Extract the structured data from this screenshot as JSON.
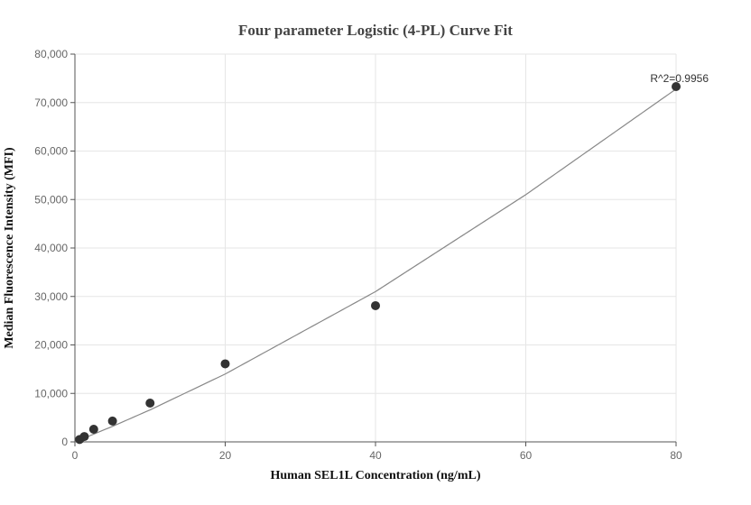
{
  "chart_data": {
    "type": "scatter",
    "title": "Four parameter Logistic (4-PL) Curve Fit",
    "xlabel": "Human SEL1L Concentration (ng/mL)",
    "ylabel": "Median Fluorescence Intensity (MFI)",
    "xlim": [
      0,
      80
    ],
    "ylim": [
      0,
      80000
    ],
    "x_ticks": [
      0,
      20,
      40,
      60,
      80
    ],
    "y_ticks": [
      0,
      10000,
      20000,
      30000,
      40000,
      50000,
      60000,
      70000,
      80000
    ],
    "x_tick_labels": [
      "0",
      "20",
      "40",
      "60",
      "80"
    ],
    "y_tick_labels": [
      "0",
      "10,000",
      "20,000",
      "30,000",
      "40,000",
      "50,000",
      "60,000",
      "70,000",
      "80,000"
    ],
    "grid": true,
    "annotation": "R^2=0.9956",
    "series": [
      {
        "type": "scatter",
        "x": [
          0.625,
          1.25,
          2.5,
          5,
          10,
          20,
          40,
          80
        ],
        "y": [
          500,
          1100,
          2600,
          4300,
          8000,
          16100,
          28100,
          73300
        ]
      },
      {
        "type": "line",
        "x": [
          0,
          5,
          10,
          20,
          40,
          60,
          80
        ],
        "y": [
          0,
          3200,
          6600,
          14000,
          31000,
          51000,
          72800
        ]
      }
    ],
    "colors": {
      "points": "#333333",
      "curve": "#888888"
    }
  }
}
